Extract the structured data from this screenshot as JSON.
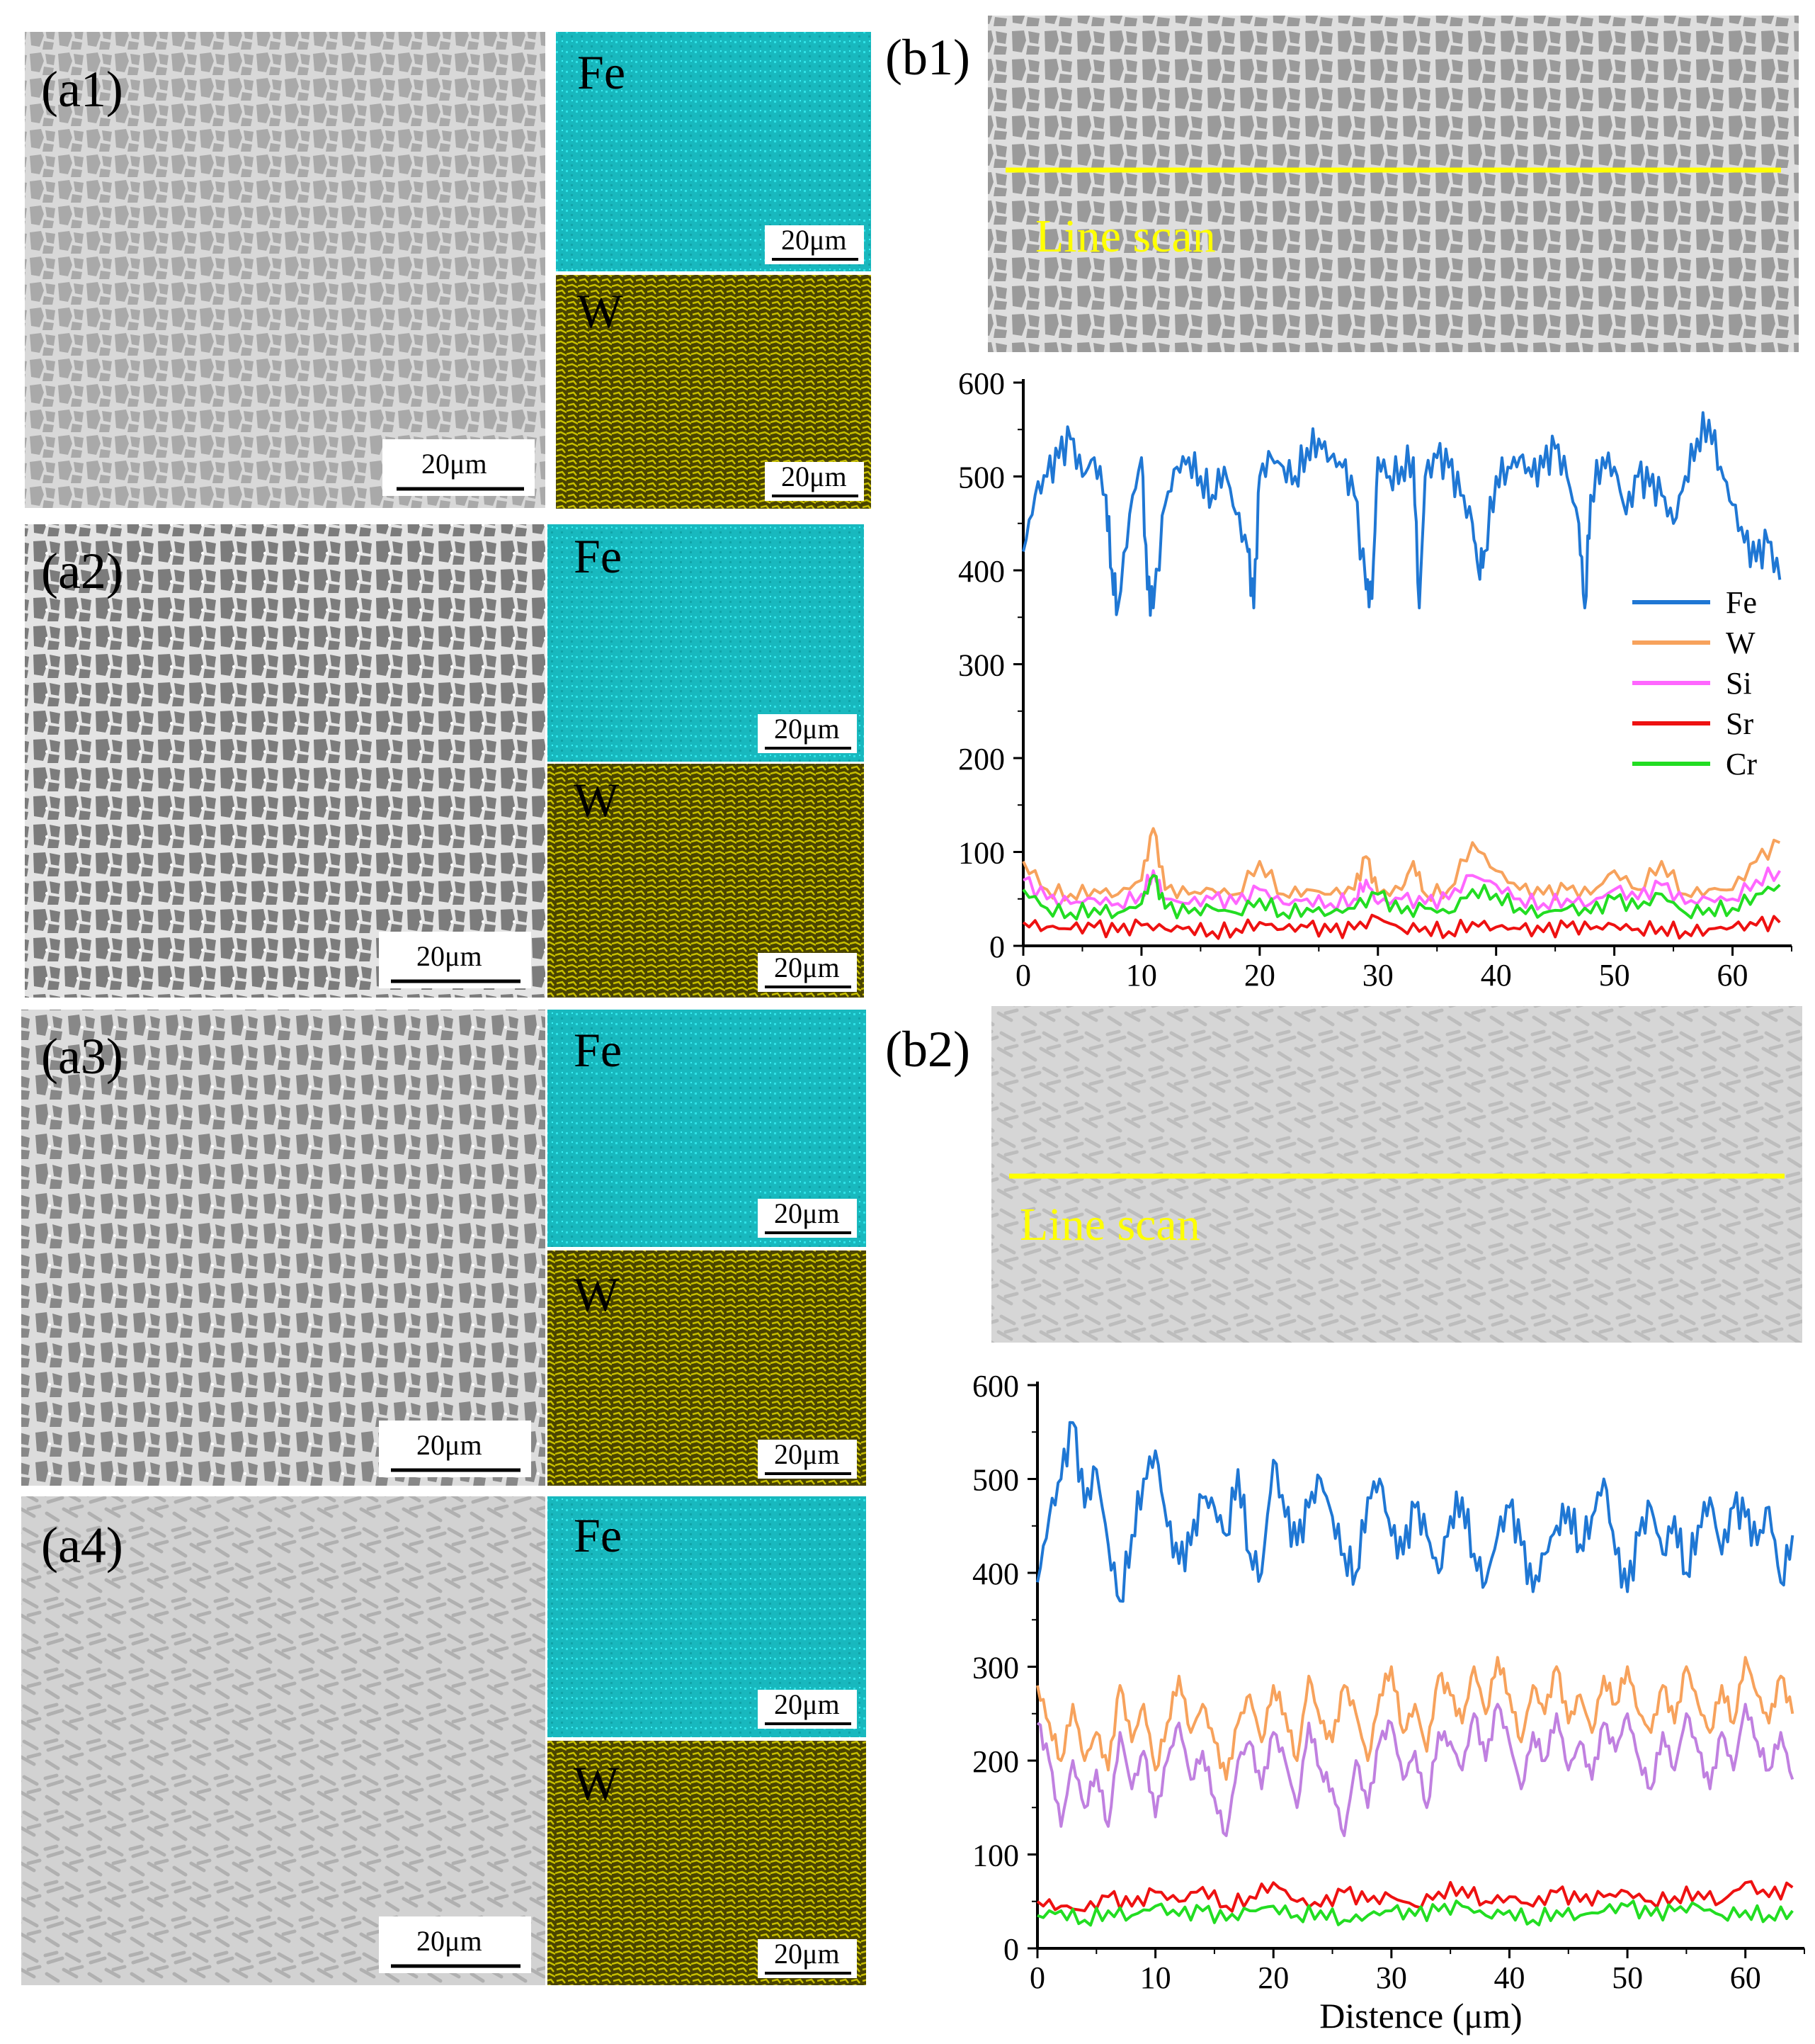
{
  "figure": {
    "panels_a": [
      {
        "id": "a1",
        "label": "(a1)",
        "scale": "20μm",
        "maps": [
          {
            "element": "Fe",
            "scale": "20μm",
            "color": "#00c2c8"
          },
          {
            "element": "W",
            "scale": "20μm",
            "color": "#a8a000"
          }
        ]
      },
      {
        "id": "a2",
        "label": "(a2)",
        "scale": "20μm",
        "maps": [
          {
            "element": "Fe",
            "scale": "20μm",
            "color": "#00c2c8"
          },
          {
            "element": "W",
            "scale": "20μm",
            "color": "#a8a000"
          }
        ]
      },
      {
        "id": "a3",
        "label": "(a3)",
        "scale": "20μm",
        "maps": [
          {
            "element": "Fe",
            "scale": "20μm",
            "color": "#00c2c8"
          },
          {
            "element": "W",
            "scale": "20μm",
            "color": "#a8a000"
          }
        ]
      },
      {
        "id": "a4",
        "label": "(a4)",
        "scale": "20μm",
        "maps": [
          {
            "element": "Fe",
            "scale": "20μm",
            "color": "#00c2c8"
          },
          {
            "element": "W",
            "scale": "20μm",
            "color": "#a8a000"
          }
        ]
      }
    ],
    "panels_b": [
      {
        "id": "b1",
        "label": "(b1)",
        "line_scan_label": "Line scan"
      },
      {
        "id": "b2",
        "label": "(b2)",
        "line_scan_label": "Line scan"
      }
    ],
    "colors": {
      "Fe": "#1f77d4",
      "W": "#f7a25c",
      "Si": "#ff66ff",
      "Sr": "#ee1111",
      "Cr": "#22dd22",
      "Si_b2": "#c080e0",
      "line_scan": "#ffff00"
    }
  },
  "chart_data": [
    {
      "type": "line",
      "panel": "b1",
      "title": "",
      "xlabel": "",
      "ylabel": "",
      "xlim": [
        0,
        65
      ],
      "ylim": [
        0,
        600
      ],
      "xticks": [
        0,
        10,
        20,
        30,
        40,
        50,
        60
      ],
      "yticks": [
        0,
        100,
        200,
        300,
        400,
        500,
        600
      ],
      "legend": [
        "Fe",
        "W",
        "Si",
        "Sr",
        "Cr"
      ],
      "legend_position": "right",
      "series": [
        {
          "name": "Fe",
          "x": [
            0,
            1,
            2,
            3,
            4,
            5,
            6,
            7,
            7.5,
            8,
            9,
            10,
            10.5,
            11,
            12,
            13,
            14,
            15,
            16,
            17,
            18,
            19,
            19.5,
            20,
            21,
            22,
            23,
            24,
            25,
            26,
            27,
            28,
            29,
            29.5,
            30,
            31,
            32,
            33,
            33.5,
            34,
            35,
            36,
            37,
            38,
            38.5,
            39,
            40,
            41,
            42,
            43,
            44,
            45,
            46,
            47,
            47.5,
            48,
            49,
            50,
            51,
            52,
            53,
            54,
            55,
            56,
            57,
            58,
            59,
            60,
            61,
            62,
            63,
            64
          ],
          "values": [
            420,
            480,
            500,
            520,
            540,
            500,
            520,
            480,
            400,
            360,
            460,
            520,
            380,
            360,
            470,
            510,
            520,
            500,
            480,
            510,
            460,
            420,
            360,
            500,
            520,
            510,
            500,
            530,
            540,
            520,
            510,
            480,
            380,
            370,
            520,
            500,
            510,
            520,
            360,
            500,
            520,
            510,
            480,
            450,
            400,
            420,
            500,
            510,
            520,
            500,
            510,
            530,
            500,
            450,
            360,
            480,
            520,
            510,
            460,
            500,
            490,
            480,
            450,
            500,
            540,
            560,
            510,
            470,
            430,
            410,
            430,
            390
          ]
        },
        {
          "name": "W",
          "x": [
            0,
            2,
            4,
            6,
            8,
            10,
            11,
            12,
            14,
            16,
            18,
            20,
            22,
            24,
            26,
            28,
            29,
            30,
            32,
            33,
            34,
            36,
            38,
            40,
            42,
            44,
            46,
            48,
            50,
            52,
            54,
            56,
            58,
            60,
            62,
            64
          ],
          "values": [
            90,
            60,
            55,
            60,
            55,
            70,
            125,
            60,
            55,
            60,
            55,
            90,
            55,
            60,
            55,
            60,
            95,
            55,
            60,
            90,
            55,
            60,
            110,
            80,
            60,
            55,
            60,
            55,
            80,
            60,
            90,
            55,
            60,
            60,
            90,
            110
          ]
        },
        {
          "name": "Si",
          "x": [
            0,
            2,
            4,
            6,
            8,
            10,
            11,
            12,
            14,
            16,
            18,
            20,
            22,
            24,
            26,
            28,
            29,
            30,
            32,
            34,
            36,
            38,
            40,
            42,
            44,
            46,
            48,
            50,
            52,
            54,
            56,
            58,
            60,
            62,
            64
          ],
          "values": [
            70,
            50,
            45,
            50,
            45,
            55,
            80,
            50,
            45,
            50,
            45,
            60,
            45,
            50,
            45,
            50,
            70,
            45,
            50,
            45,
            50,
            75,
            65,
            50,
            45,
            50,
            45,
            60,
            50,
            65,
            45,
            50,
            50,
            70,
            80
          ]
        },
        {
          "name": "Sr",
          "x": [
            0,
            2,
            4,
            6,
            8,
            10,
            12,
            14,
            16,
            18,
            20,
            22,
            24,
            26,
            28,
            30,
            32,
            34,
            36,
            38,
            40,
            42,
            44,
            46,
            48,
            50,
            52,
            54,
            56,
            58,
            60,
            62,
            64
          ],
          "values": [
            25,
            20,
            18,
            20,
            15,
            22,
            18,
            20,
            15,
            18,
            25,
            18,
            20,
            15,
            18,
            30,
            18,
            20,
            15,
            25,
            20,
            18,
            15,
            20,
            18,
            22,
            18,
            20,
            15,
            18,
            20,
            22,
            25
          ]
        },
        {
          "name": "Cr",
          "x": [
            0,
            2,
            4,
            6,
            8,
            10,
            11,
            12,
            14,
            16,
            18,
            20,
            22,
            24,
            26,
            28,
            30,
            32,
            34,
            36,
            38,
            40,
            42,
            44,
            46,
            48,
            50,
            52,
            54,
            56,
            58,
            60,
            62,
            64
          ],
          "values": [
            60,
            40,
            35,
            40,
            35,
            45,
            75,
            40,
            35,
            40,
            35,
            50,
            35,
            40,
            35,
            40,
            55,
            35,
            40,
            35,
            60,
            55,
            40,
            35,
            40,
            35,
            50,
            40,
            55,
            35,
            40,
            40,
            55,
            65
          ]
        }
      ]
    },
    {
      "type": "line",
      "panel": "b2",
      "title": "",
      "xlabel": "Distence (μm)",
      "ylabel": "",
      "xlim": [
        0,
        65
      ],
      "ylim": [
        0,
        600
      ],
      "xticks": [
        0,
        10,
        20,
        30,
        40,
        50,
        60
      ],
      "yticks": [
        0,
        100,
        200,
        300,
        400,
        500,
        600
      ],
      "series": [
        {
          "name": "Fe",
          "x": [
            0,
            1,
            2,
            3,
            4,
            5,
            6,
            7,
            8,
            9,
            10,
            11,
            12,
            13,
            14,
            15,
            16,
            17,
            18,
            19,
            20,
            21,
            22,
            23,
            24,
            25,
            26,
            27,
            28,
            29,
            30,
            31,
            32,
            33,
            34,
            35,
            36,
            37,
            38,
            39,
            40,
            41,
            42,
            43,
            44,
            45,
            46,
            47,
            48,
            49,
            50,
            51,
            52,
            53,
            54,
            55,
            56,
            57,
            58,
            59,
            60,
            61,
            62,
            63,
            64
          ],
          "values": [
            390,
            460,
            500,
            560,
            470,
            510,
            430,
            370,
            440,
            500,
            530,
            450,
            410,
            430,
            480,
            470,
            440,
            510,
            420,
            400,
            520,
            460,
            430,
            470,
            500,
            460,
            420,
            400,
            480,
            500,
            440,
            420,
            470,
            440,
            400,
            460,
            480,
            420,
            390,
            440,
            470,
            430,
            380,
            420,
            450,
            470,
            430,
            460,
            500,
            420,
            380,
            440,
            470,
            420,
            460,
            400,
            450,
            480,
            420,
            470,
            460,
            430,
            470,
            390,
            440
          ]
        },
        {
          "name": "W",
          "x": [
            0,
            1,
            2,
            3,
            4,
            5,
            6,
            7,
            8,
            9,
            10,
            11,
            12,
            13,
            14,
            15,
            16,
            17,
            18,
            19,
            20,
            21,
            22,
            23,
            24,
            25,
            26,
            27,
            28,
            29,
            30,
            31,
            32,
            33,
            34,
            35,
            36,
            37,
            38,
            39,
            40,
            41,
            42,
            43,
            44,
            45,
            46,
            47,
            48,
            49,
            50,
            51,
            52,
            53,
            54,
            55,
            56,
            57,
            58,
            59,
            60,
            61,
            62,
            63,
            64
          ],
          "values": [
            280,
            240,
            200,
            260,
            200,
            230,
            190,
            280,
            220,
            260,
            190,
            240,
            290,
            230,
            260,
            220,
            180,
            240,
            270,
            220,
            280,
            250,
            200,
            290,
            240,
            220,
            280,
            250,
            200,
            270,
            300,
            230,
            260,
            210,
            290,
            270,
            240,
            300,
            250,
            310,
            270,
            220,
            280,
            250,
            300,
            240,
            270,
            230,
            290,
            260,
            300,
            250,
            230,
            280,
            240,
            300,
            260,
            230,
            280,
            240,
            310,
            270,
            240,
            290,
            250
          ]
        },
        {
          "name": "Si",
          "x": [
            0,
            1,
            2,
            3,
            4,
            5,
            6,
            7,
            8,
            9,
            10,
            11,
            12,
            13,
            14,
            15,
            16,
            17,
            18,
            19,
            20,
            21,
            22,
            23,
            24,
            25,
            26,
            27,
            28,
            29,
            30,
            31,
            32,
            33,
            34,
            35,
            36,
            37,
            38,
            39,
            40,
            41,
            42,
            43,
            44,
            45,
            46,
            47,
            48,
            49,
            50,
            51,
            52,
            53,
            54,
            55,
            56,
            57,
            58,
            59,
            60,
            61,
            62,
            63,
            64
          ],
          "values": [
            240,
            200,
            130,
            200,
            150,
            190,
            130,
            230,
            170,
            210,
            140,
            200,
            240,
            180,
            210,
            160,
            120,
            200,
            220,
            170,
            230,
            200,
            150,
            240,
            190,
            170,
            120,
            200,
            150,
            220,
            240,
            180,
            210,
            150,
            230,
            220,
            190,
            250,
            200,
            260,
            220,
            170,
            230,
            200,
            250,
            190,
            220,
            180,
            240,
            210,
            250,
            200,
            170,
            230,
            190,
            250,
            210,
            170,
            230,
            190,
            260,
            220,
            190,
            230,
            180
          ]
        },
        {
          "name": "Sr",
          "x": [
            0,
            2,
            4,
            6,
            8,
            10,
            12,
            14,
            16,
            18,
            20,
            22,
            24,
            26,
            28,
            30,
            32,
            34,
            36,
            38,
            40,
            42,
            44,
            46,
            48,
            50,
            52,
            54,
            56,
            58,
            60,
            62,
            64
          ],
          "values": [
            50,
            45,
            40,
            55,
            45,
            60,
            50,
            65,
            45,
            55,
            70,
            50,
            45,
            60,
            50,
            55,
            45,
            60,
            65,
            50,
            55,
            45,
            60,
            50,
            55,
            60,
            50,
            55,
            60,
            50,
            70,
            55,
            65
          ]
        },
        {
          "name": "Cr",
          "x": [
            0,
            2,
            4,
            6,
            8,
            10,
            12,
            14,
            16,
            18,
            20,
            22,
            24,
            26,
            28,
            30,
            32,
            34,
            36,
            38,
            40,
            42,
            44,
            46,
            48,
            50,
            52,
            54,
            56,
            58,
            60,
            62,
            64
          ],
          "values": [
            35,
            40,
            30,
            40,
            35,
            45,
            35,
            40,
            30,
            40,
            45,
            35,
            40,
            30,
            35,
            40,
            35,
            40,
            45,
            35,
            40,
            30,
            40,
            35,
            40,
            45,
            35,
            40,
            45,
            35,
            40,
            35,
            40
          ]
        }
      ]
    }
  ]
}
